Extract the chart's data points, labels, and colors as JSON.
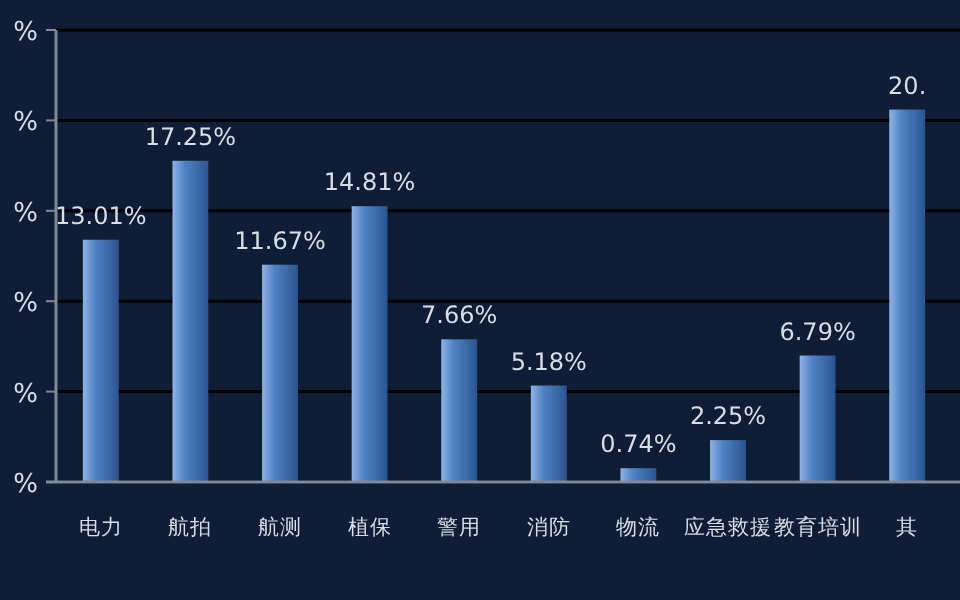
{
  "chart_data": {
    "type": "bar",
    "categories": [
      "电力",
      "航拍",
      "航测",
      "植保",
      "警用",
      "消防",
      "物流",
      "应急救援",
      "教育培训",
      "其"
    ],
    "values": [
      13.01,
      17.25,
      11.67,
      14.81,
      7.66,
      5.18,
      0.74,
      2.25,
      6.79,
      20
    ],
    "value_labels": [
      "13.01%",
      "17.25%",
      "11.67%",
      "14.81%",
      "7.66%",
      "5.18%",
      "0.74%",
      "2.25%",
      "6.79%",
      "20."
    ],
    "color": "#4f82c4",
    "annotations": [
      "%",
      "%",
      "%",
      "%",
      "%",
      "%"
    ],
    "grid": "y"
  }
}
